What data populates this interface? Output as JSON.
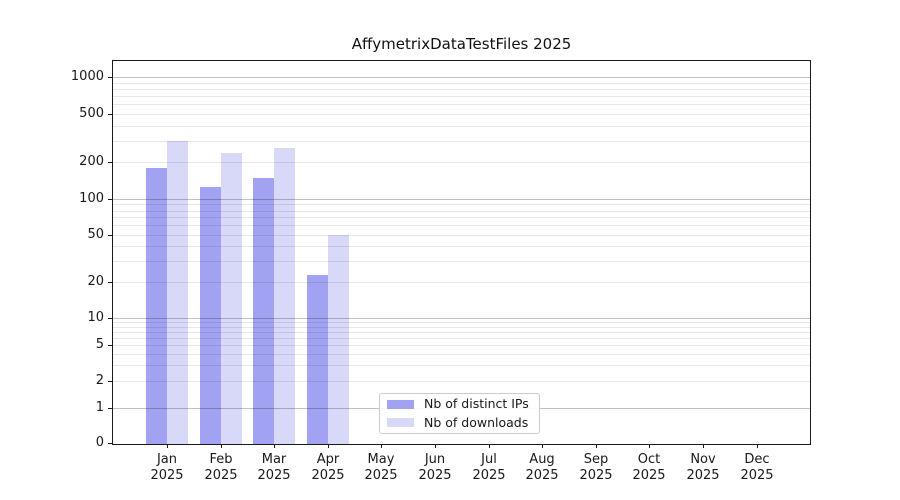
{
  "chart_data": {
    "type": "bar",
    "title": "AffymetrixDataTestFiles 2025",
    "yscale": "symlog",
    "ylim": [
      0,
      1350
    ],
    "grid": true,
    "legend_position": "lower center",
    "yticks": [
      0,
      1,
      2,
      5,
      10,
      20,
      50,
      100,
      200,
      500,
      1000
    ],
    "months": [
      "Jan",
      "Feb",
      "Mar",
      "Apr",
      "May",
      "Jun",
      "Jul",
      "Aug",
      "Sep",
      "Oct",
      "Nov",
      "Dec"
    ],
    "year_label": "2025",
    "categories": [
      "Jan 2025",
      "Feb 2025",
      "Mar 2025",
      "Apr 2025",
      "May 2025",
      "Jun 2025",
      "Jul 2025",
      "Aug 2025",
      "Sep 2025",
      "Oct 2025",
      "Nov 2025",
      "Dec 2025"
    ],
    "series": [
      {
        "key": "distinct-ips",
        "name": "Nb of distinct IPs",
        "color": "#a2a2f2",
        "values": [
          180,
          125,
          150,
          23,
          0,
          0,
          0,
          0,
          0,
          0,
          0,
          0
        ]
      },
      {
        "key": "downloads",
        "name": "Nb of downloads",
        "color": "#d8d8f9",
        "values": [
          300,
          240,
          260,
          50,
          0,
          0,
          0,
          0,
          0,
          0,
          0,
          0
        ]
      }
    ],
    "axis_colors": {
      "spine": "#1a1a1a",
      "grid_major": "#c2c2c2",
      "grid_minor": "#e8e8e8",
      "text": "#191919"
    }
  }
}
